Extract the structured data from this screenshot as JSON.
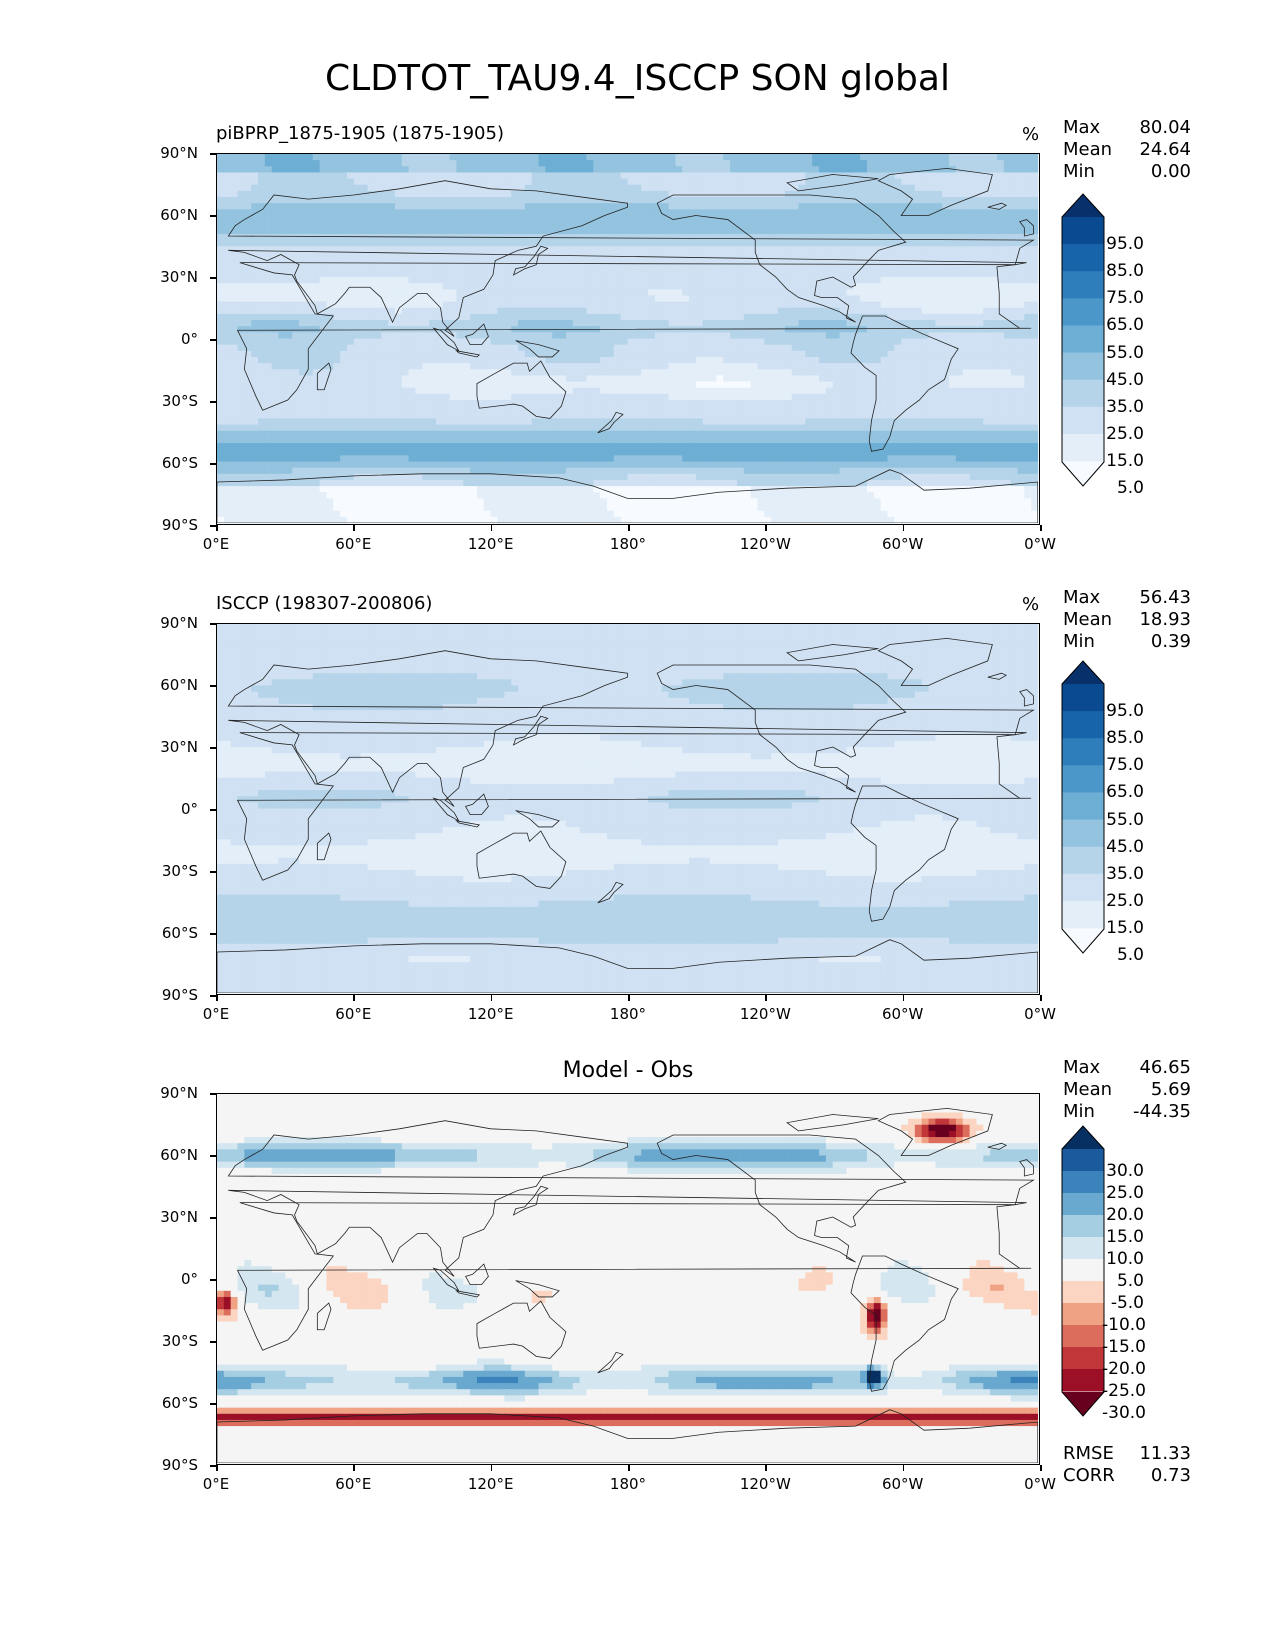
{
  "title": "CLDTOT_TAU9.4_ISCCP SON global",
  "x_ticks": [
    "0°E",
    "60°E",
    "120°E",
    "180°",
    "120°W",
    "60°W",
    "0°W"
  ],
  "y_ticks": [
    "90°N",
    "60°N",
    "30°N",
    "0°",
    "30°S",
    "60°S",
    "90°S"
  ],
  "panels": [
    {
      "left_title": "piBPRP_1875-1905 (1875-1905)",
      "right_title": "%",
      "stats": [
        [
          "Max",
          "80.04"
        ],
        [
          "Mean",
          "24.64"
        ],
        [
          "Min",
          "0.00"
        ]
      ],
      "colorbar_labels": [
        "95.0",
        "85.0",
        "75.0",
        "65.0",
        "55.0",
        "45.0",
        "35.0",
        "25.0",
        "15.0",
        "5.0"
      ],
      "palette": "blues"
    },
    {
      "left_title": "ISCCP (198307-200806)",
      "right_title": "%",
      "stats": [
        [
          "Max",
          "56.43"
        ],
        [
          "Mean",
          "18.93"
        ],
        [
          "Min",
          "0.39"
        ]
      ],
      "colorbar_labels": [
        "95.0",
        "85.0",
        "75.0",
        "65.0",
        "55.0",
        "45.0",
        "35.0",
        "25.0",
        "15.0",
        "5.0"
      ],
      "palette": "blues"
    },
    {
      "center_title": "Model - Obs",
      "stats": [
        [
          "Max",
          "46.65"
        ],
        [
          "Mean",
          "5.69"
        ],
        [
          "Min",
          "-44.35"
        ]
      ],
      "colorbar_labels": [
        "30.0",
        "25.0",
        "20.0",
        "15.0",
        "10.0",
        "5.0",
        "-5.0",
        "-10.0",
        "-15.0",
        "-20.0",
        "-25.0",
        "-30.0"
      ],
      "palette": "rdbu",
      "bottom_stats": [
        [
          "RMSE",
          "11.33"
        ],
        [
          "CORR",
          "0.73"
        ]
      ]
    }
  ],
  "colors": {
    "blues": [
      "#f7fbff",
      "#e3eef9",
      "#cfe1f2",
      "#b5d4e9",
      "#93c3df",
      "#6daed5",
      "#4b97c9",
      "#2f7ebc",
      "#1864aa",
      "#0a4a90",
      "#08306b"
    ],
    "rdbu": [
      "#67001f",
      "#9b1027",
      "#c13639",
      "#dc6c5c",
      "#f0a285",
      "#fbd5c1",
      "#f5f5f5",
      "#d4e6f0",
      "#a6cee3",
      "#69a8cf",
      "#3a84bb",
      "#1b5a9c",
      "#053061"
    ]
  },
  "chart_data": [
    {
      "type": "heatmap",
      "title": "piBPRP_1875-1905 (1875-1905)",
      "units": "%",
      "x_ticks": [
        "0°E",
        "60°E",
        "120°E",
        "180°",
        "120°W",
        "60°W",
        "0°W"
      ],
      "y_ticks": [
        "90°N",
        "60°N",
        "30°N",
        "0°",
        "30°S",
        "60°S",
        "90°S"
      ],
      "stats": {
        "max": 80.04,
        "mean": 24.64,
        "min": 0.0
      },
      "levels": [
        5,
        15,
        25,
        35,
        45,
        55,
        65,
        75,
        85,
        95
      ]
    },
    {
      "type": "heatmap",
      "title": "ISCCP (198307-200806)",
      "units": "%",
      "x_ticks": [
        "0°E",
        "60°E",
        "120°E",
        "180°",
        "120°W",
        "60°W",
        "0°W"
      ],
      "y_ticks": [
        "90°N",
        "60°N",
        "30°N",
        "0°",
        "30°S",
        "60°S",
        "90°S"
      ],
      "stats": {
        "max": 56.43,
        "mean": 18.93,
        "min": 0.39
      },
      "levels": [
        5,
        15,
        25,
        35,
        45,
        55,
        65,
        75,
        85,
        95
      ]
    },
    {
      "type": "heatmap",
      "title": "Model - Obs",
      "x_ticks": [
        "0°E",
        "60°E",
        "120°E",
        "180°",
        "120°W",
        "60°W",
        "0°W"
      ],
      "y_ticks": [
        "90°N",
        "60°N",
        "30°N",
        "0°",
        "30°S",
        "60°S",
        "90°S"
      ],
      "stats": {
        "max": 46.65,
        "mean": 5.69,
        "min": -44.35,
        "rmse": 11.33,
        "corr": 0.73
      },
      "levels": [
        -30,
        -25,
        -20,
        -15,
        -10,
        -5,
        5,
        10,
        15,
        20,
        25,
        30
      ]
    }
  ]
}
